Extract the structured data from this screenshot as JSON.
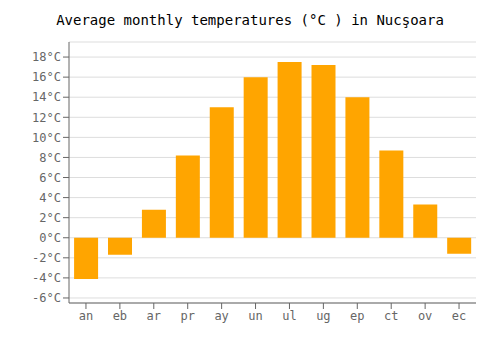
{
  "chart_data": {
    "type": "bar",
    "title": "Average monthly temperatures (°C ) in Nucşoara",
    "categories": [
      "an",
      "eb",
      "ar",
      "pr",
      "ay",
      "un",
      "ul",
      "ug",
      "ep",
      "ct",
      "ov",
      "ec"
    ],
    "values": [
      -4.1,
      -1.7,
      2.8,
      8.2,
      13.0,
      16.0,
      17.5,
      17.2,
      14.0,
      8.7,
      3.3,
      -1.6
    ],
    "color": "#FFA500",
    "ylim": [
      -6.5,
      19.5
    ],
    "yticks": [
      {
        "value": -6,
        "label": "-6°C"
      },
      {
        "value": -4,
        "label": "-4°C"
      },
      {
        "value": -2,
        "label": "-2°C"
      },
      {
        "value": 0,
        "label": "0°C"
      },
      {
        "value": 2,
        "label": "2°C"
      },
      {
        "value": 4,
        "label": "4°C"
      },
      {
        "value": 6,
        "label": "6°C"
      },
      {
        "value": 8,
        "label": "8°C"
      },
      {
        "value": 10,
        "label": "10°C"
      },
      {
        "value": 12,
        "label": "12°C"
      },
      {
        "value": 14,
        "label": "14°C"
      },
      {
        "value": 16,
        "label": "16°C"
      },
      {
        "value": 18,
        "label": "18°C"
      }
    ],
    "grid": true
  }
}
